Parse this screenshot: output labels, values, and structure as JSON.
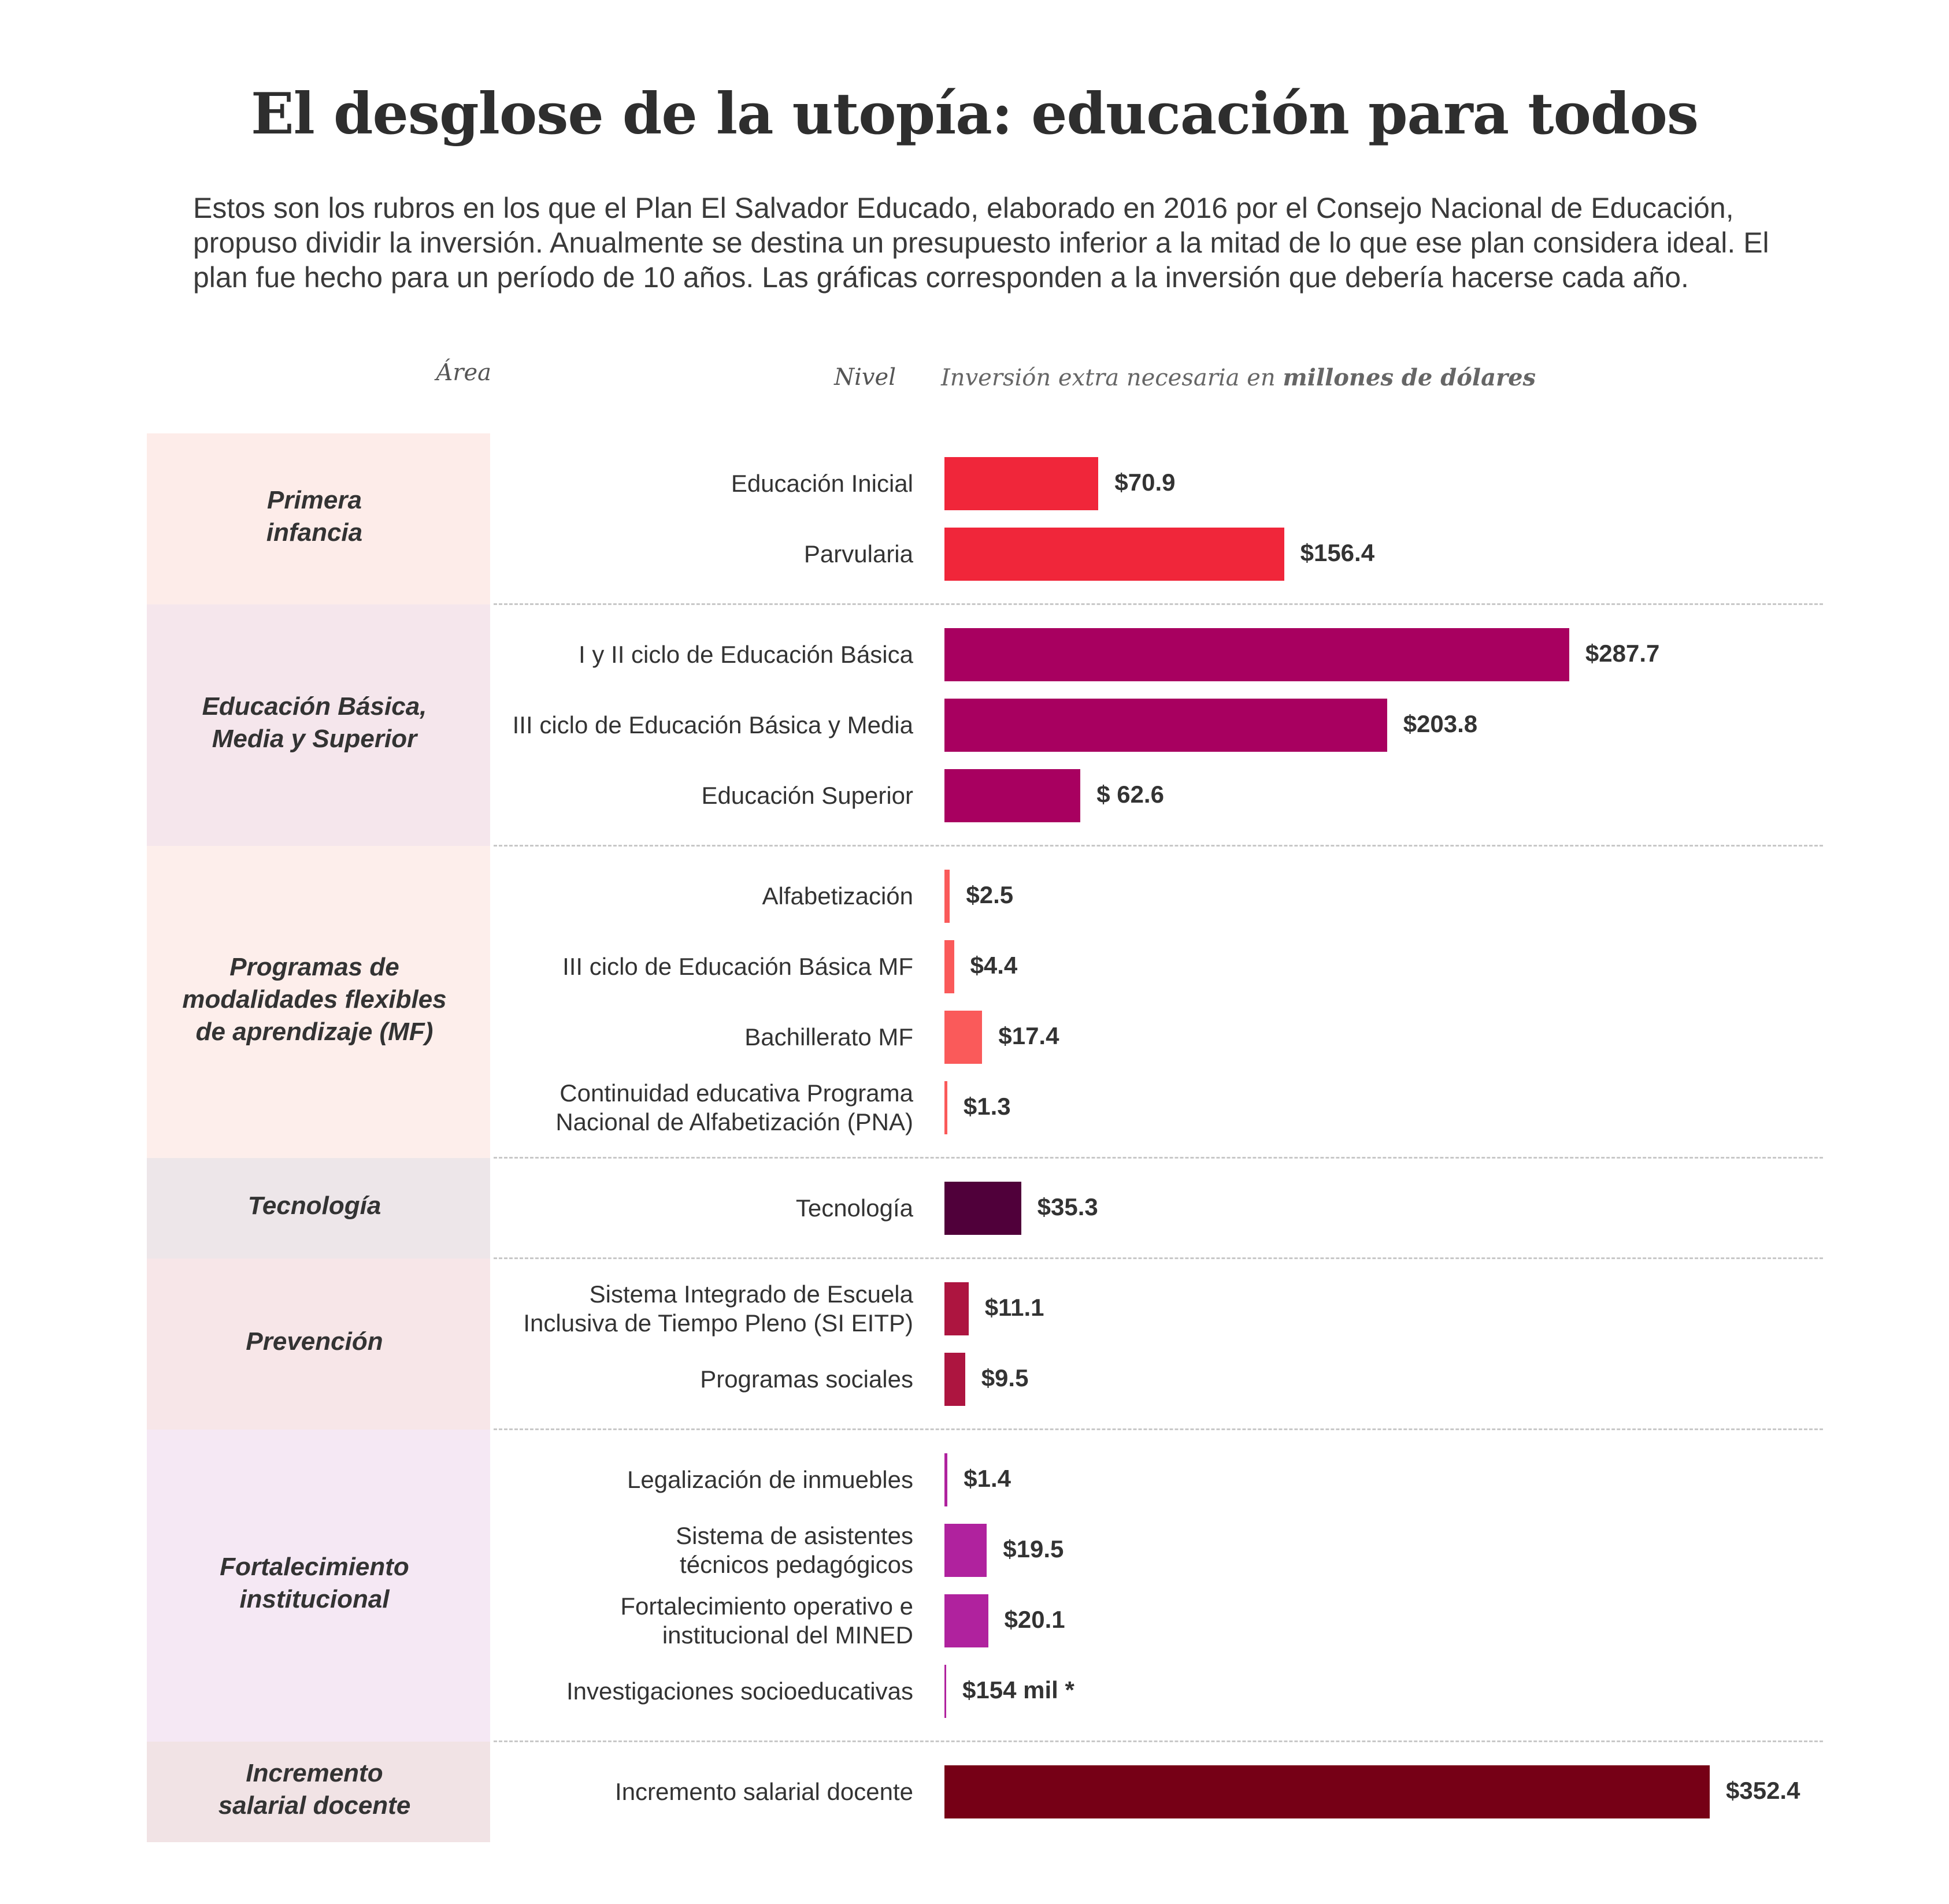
{
  "title": "El desglose de la utopía: educación para todos",
  "subtitle": "Estos son los rubros en los que el Plan El Salvador Educado, elaborado en 2016 por el Consejo Nacional de Educación, propuso dividir la inversión. Anualmente  se destina un presupuesto inferior a la mitad de lo que ese plan considera ideal. El plan fue hecho para un período de 10 años. Las gráficas corresponden a la inversión que debería hacerse cada año.",
  "headers": {
    "area": "Área",
    "level": "Nivel",
    "investment_prefix": "Inversión extra necesaria en",
    "investment_bold": "millones de dólares"
  },
  "chart_data": {
    "type": "bar",
    "orientation": "horizontal",
    "unit": "millones de dólares",
    "xlim": [
      0,
      352.4
    ],
    "groups": [
      {
        "area": "Primera\ninfancia",
        "band_color": "#fdece9",
        "bar_color": "#f0263a",
        "items": [
          {
            "label": "Educación Inicial",
            "value": 70.9,
            "value_label": "$70.9"
          },
          {
            "label": "Parvularia",
            "value": 156.4,
            "value_label": "$156.4"
          }
        ]
      },
      {
        "area": "Educación Básica,\nMedia y Superior",
        "band_color": "#f5e6ec",
        "bar_color": "#a80060",
        "items": [
          {
            "label": "I y II ciclo de Educación Básica",
            "value": 287.7,
            "value_label": "$287.7"
          },
          {
            "label": "III ciclo de Educación Básica y Media",
            "value": 203.8,
            "value_label": "$203.8"
          },
          {
            "label": "Educación Superior",
            "value": 62.6,
            "value_label": "$ 62.6"
          }
        ]
      },
      {
        "area": "Programas de\nmodalidades flexibles\nde aprendizaje (MF)",
        "band_color": "#fdeeeb",
        "bar_color": "#fa5a5a",
        "items": [
          {
            "label": "Alfabetización",
            "value": 2.5,
            "value_label": "$2.5"
          },
          {
            "label": "III ciclo de Educación Básica MF",
            "value": 4.4,
            "value_label": "$4.4"
          },
          {
            "label": "Bachillerato MF",
            "value": 17.4,
            "value_label": "$17.4"
          },
          {
            "label": "Continuidad educativa Programa\nNacional de Alfabetización (PNA)",
            "value": 1.3,
            "value_label": "$1.3"
          }
        ]
      },
      {
        "area": "Tecnología",
        "band_color": "#ede6e9",
        "bar_color": "#50003a",
        "items": [
          {
            "label": "Tecnología",
            "value": 35.3,
            "value_label": "$35.3"
          }
        ]
      },
      {
        "area": "Prevención",
        "band_color": "#f7e6e8",
        "bar_color": "#ad1540",
        "items": [
          {
            "label": "Sistema Integrado de Escuela\nInclusiva de Tiempo Pleno (SI EITP)",
            "value": 11.1,
            "value_label": "$11.1"
          },
          {
            "label": "Programas sociales",
            "value": 9.5,
            "value_label": "$9.5"
          }
        ]
      },
      {
        "area": "Fortalecimiento\ninstitucional",
        "band_color": "#f5e8f4",
        "bar_color": "#b0229e",
        "items": [
          {
            "label": "Legalización de inmuebles",
            "value": 1.4,
            "value_label": "$1.4"
          },
          {
            "label": "Sistema de asistentes\ntécnicos pedagógicos",
            "value": 19.5,
            "value_label": "$19.5"
          },
          {
            "label": "Fortalecimiento operativo e\ninstitucional del MINED",
            "value": 20.1,
            "value_label": "$20.1"
          },
          {
            "label": "Investigaciones socioeducativas",
            "value": 0.154,
            "value_label": "$154 mil *"
          }
        ]
      },
      {
        "area": "Incremento\nsalarial docente",
        "band_color": "#f1e3e5",
        "bar_color": "#760016",
        "items": [
          {
            "label": "Incremento salarial docente",
            "value": 352.4,
            "value_label": "$352.4"
          }
        ]
      }
    ]
  }
}
